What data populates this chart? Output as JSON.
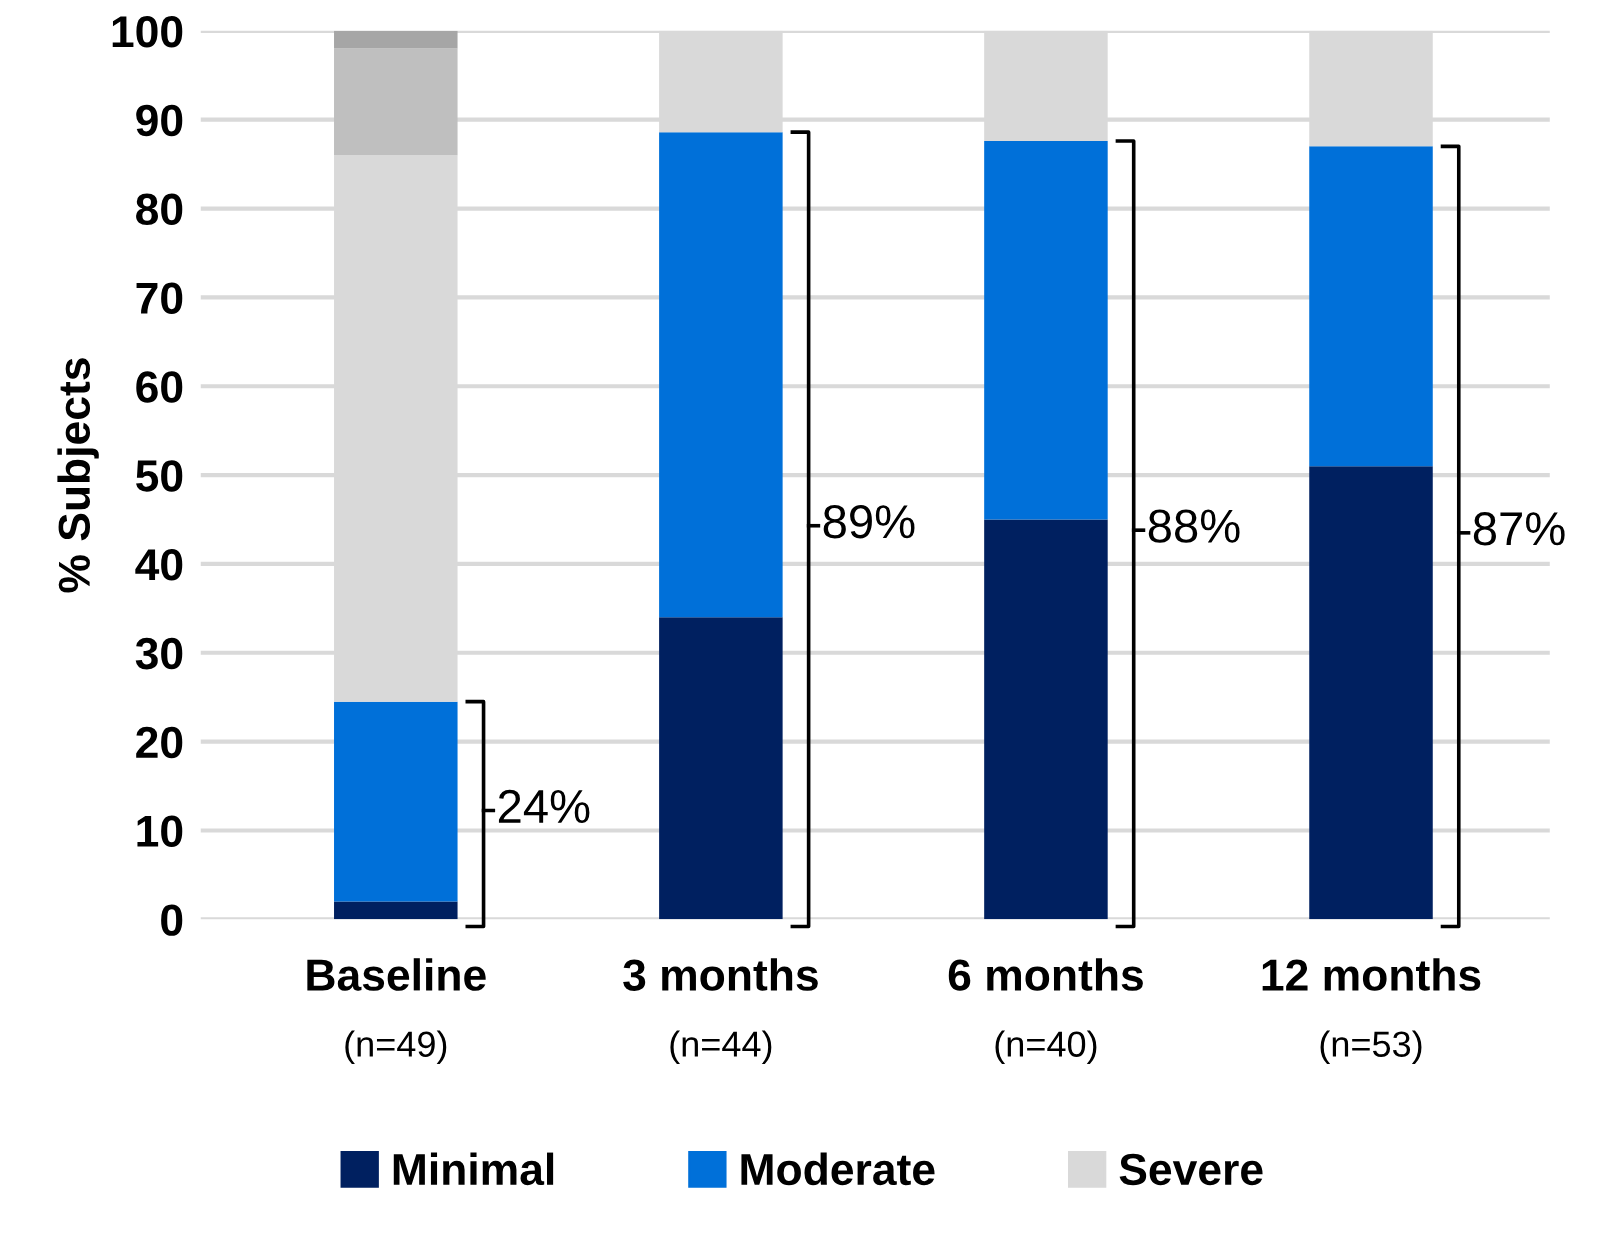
{
  "chart_data": {
    "type": "bar",
    "stacked": true,
    "ylabel": "% Subjects",
    "categories": [
      "Baseline",
      "3 months",
      "6 months",
      "12 months"
    ],
    "series": [
      {
        "name": "Minimal",
        "color": "#002060",
        "values": [
          2,
          34,
          45,
          51
        ]
      },
      {
        "name": "Moderate",
        "color": "#0070d9",
        "values": [
          22.5,
          54.6,
          42.6,
          36
        ]
      },
      {
        "name": "Severe",
        "color": "#d9d9d9",
        "values": [
          61.5,
          11.4,
          12.4,
          13
        ]
      },
      {
        "color": "#bfbfbf",
        "values": [
          12,
          null,
          null,
          null
        ]
      },
      {
        "color": "#a6a6a6",
        "values": [
          2,
          null,
          null,
          null
        ]
      }
    ],
    "ylim": [
      0,
      100
    ],
    "yticks": [
      0,
      10,
      20,
      30,
      40,
      50,
      60,
      70,
      80,
      90,
      100
    ],
    "grid": "y",
    "legend": "bottom",
    "annotations": [
      "24%",
      "89%",
      "88%",
      "87%",
      "(n=49)",
      "(n=44)",
      "(n=40)",
      "(n=53)"
    ]
  }
}
